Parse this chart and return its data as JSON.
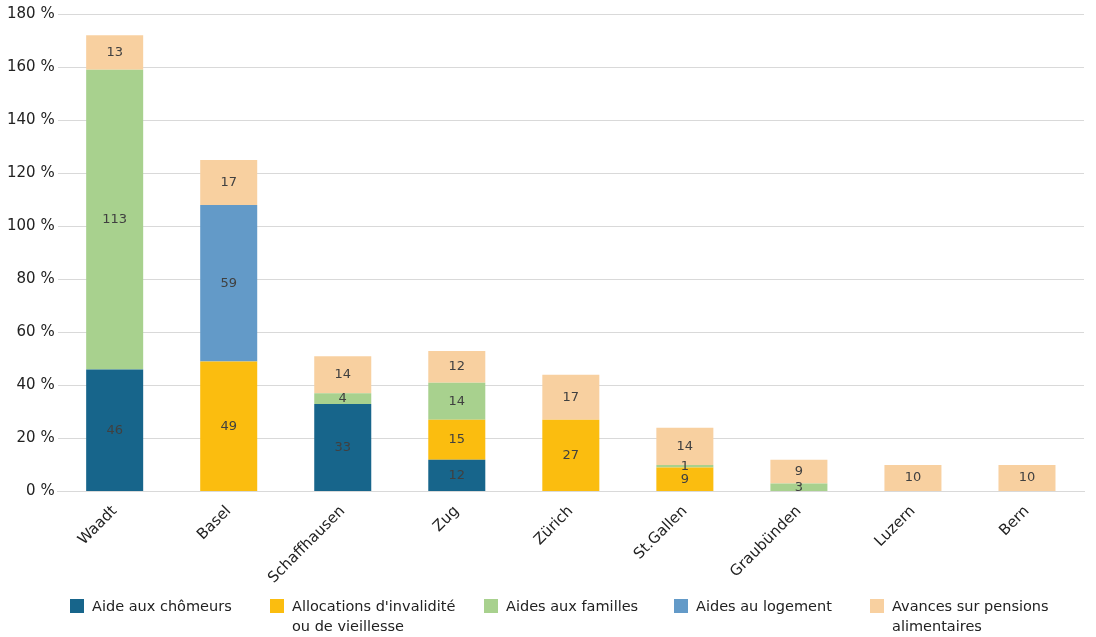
{
  "chart_data": {
    "type": "bar",
    "stacked": true,
    "categories": [
      "Waadt",
      "Basel",
      "Schaffhausen",
      "Zug",
      "Zürich",
      "St.Gallen",
      "Graubünden",
      "Luzern",
      "Bern"
    ],
    "series": [
      {
        "name": "Aide aux chômeurs",
        "color": "#17658b",
        "values": [
          46,
          null,
          33,
          12,
          null,
          null,
          null,
          null,
          null
        ]
      },
      {
        "name": "Allocations d'invalidité ou de vieillesse",
        "color": "#fbbd0f",
        "values": [
          null,
          49,
          null,
          15,
          27,
          9,
          null,
          null,
          null
        ]
      },
      {
        "name": "Aides aux familles",
        "color": "#a8d18e",
        "values": [
          113,
          null,
          4,
          14,
          null,
          1,
          3,
          null,
          null
        ]
      },
      {
        "name": "Aides au logement",
        "color": "#639ac8",
        "values": [
          null,
          59,
          null,
          null,
          null,
          null,
          null,
          null,
          null
        ]
      },
      {
        "name": "Avances sur pensions alimentaires",
        "color": "#f8d0a0",
        "values": [
          13,
          17,
          14,
          12,
          17,
          14,
          9,
          10,
          10
        ]
      }
    ],
    "ylim": [
      0,
      180
    ],
    "yticks": [
      {
        "value": 0,
        "label": "0 %"
      },
      {
        "value": 20,
        "label": "20 %"
      },
      {
        "value": 40,
        "label": "40 %"
      },
      {
        "value": 60,
        "label": "60 %"
      },
      {
        "value": 80,
        "label": "80 %"
      },
      {
        "value": 100,
        "label": "100 %"
      },
      {
        "value": 120,
        "label": "120 %"
      },
      {
        "value": 140,
        "label": "140 %"
      },
      {
        "value": 160,
        "label": "160 %"
      },
      {
        "value": 180,
        "label": "180 %"
      }
    ],
    "grid": "y",
    "legend": "bottom",
    "data_labels": true
  }
}
